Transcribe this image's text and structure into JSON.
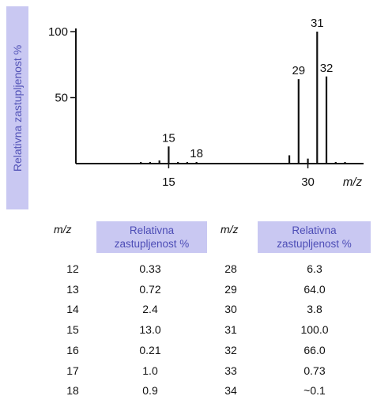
{
  "chart_data": {
    "type": "bar",
    "ylabel": "Relativna zastupljenost %",
    "xlabel": "m/z",
    "xlim": [
      5,
      36
    ],
    "ylim": [
      0,
      100
    ],
    "xticks": [
      15,
      30
    ],
    "yticks": [
      50,
      100
    ],
    "bars": [
      {
        "x": 12,
        "y": 0.33
      },
      {
        "x": 13,
        "y": 0.72
      },
      {
        "x": 14,
        "y": 2.4
      },
      {
        "x": 15,
        "y": 13.0,
        "label": "15"
      },
      {
        "x": 16,
        "y": 0.21
      },
      {
        "x": 17,
        "y": 1.0
      },
      {
        "x": 18,
        "y": 0.9,
        "label": "18"
      },
      {
        "x": 28,
        "y": 6.3
      },
      {
        "x": 29,
        "y": 64.0,
        "label": "29"
      },
      {
        "x": 30,
        "y": 3.8
      },
      {
        "x": 31,
        "y": 100.0,
        "label": "31"
      },
      {
        "x": 32,
        "y": 66.0,
        "label": "32"
      },
      {
        "x": 33,
        "y": 0.73
      },
      {
        "x": 34,
        "y": 0.1
      }
    ]
  },
  "table": {
    "header_mz": "m/z",
    "header_abundance": "Relativna zastupljenost %",
    "left": [
      {
        "mz": "12",
        "val": "0.33"
      },
      {
        "mz": "13",
        "val": "0.72"
      },
      {
        "mz": "14",
        "val": "2.4"
      },
      {
        "mz": "15",
        "val": "13.0"
      },
      {
        "mz": "16",
        "val": "0.21"
      },
      {
        "mz": "17",
        "val": "1.0"
      },
      {
        "mz": "18",
        "val": "0.9"
      }
    ],
    "right": [
      {
        "mz": "28",
        "val": "6.3"
      },
      {
        "mz": "29",
        "val": "64.0"
      },
      {
        "mz": "30",
        "val": "3.8"
      },
      {
        "mz": "31",
        "val": "100.0"
      },
      {
        "mz": "32",
        "val": "66.0"
      },
      {
        "mz": "33",
        "val": "0.73"
      },
      {
        "mz": "34",
        "val": "~0.1"
      }
    ]
  }
}
